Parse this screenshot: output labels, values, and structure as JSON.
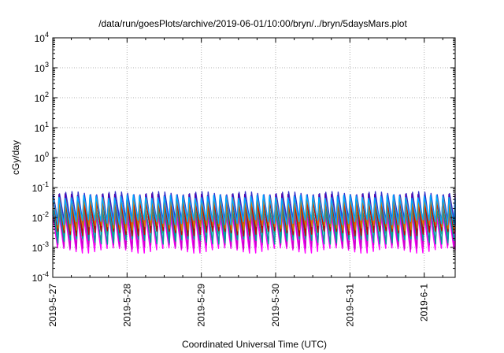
{
  "chart_data": {
    "type": "line",
    "title": "/data/run/goesPlots/archive/2019-06-01/10:00/bryn/../bryn/5daysMars.plot",
    "xlabel": "Coordinated Universal Time (UTC)",
    "ylabel": "cGy/day",
    "yscale": "log",
    "ylim": [
      0.0001,
      10000
    ],
    "xlim": [
      "2019-05-27",
      "2019-06-01T10:00"
    ],
    "grid": true,
    "xticks": [
      "2019-5-27",
      "2019-5-28",
      "2019-5-29",
      "2019-5-30",
      "2019-5-31",
      "2019-6-1"
    ],
    "yticks": [
      {
        "base": "10",
        "exp": "-4"
      },
      {
        "base": "10",
        "exp": "-3"
      },
      {
        "base": "10",
        "exp": "-2"
      },
      {
        "base": "10",
        "exp": "-1"
      },
      {
        "base": "10",
        "exp": "0"
      },
      {
        "base": "10",
        "exp": "1"
      },
      {
        "base": "10",
        "exp": "2"
      },
      {
        "base": "10",
        "exp": "3"
      },
      {
        "base": "10",
        "exp": "4"
      }
    ],
    "cycles_per_day": 12,
    "series": [
      {
        "color": "#ff00ff",
        "peak": 0.012,
        "trough": 0.0008
      },
      {
        "color": "#cc00cc",
        "peak": 0.016,
        "trough": 0.0011
      },
      {
        "color": "#00cccc",
        "peak": 0.03,
        "trough": 0.0022
      },
      {
        "color": "#22aa88",
        "peak": 0.045,
        "trough": 0.0035
      },
      {
        "color": "#009999",
        "peak": 0.02,
        "trough": 0.0016
      },
      {
        "color": "#3333cc",
        "peak": 0.065,
        "trough": 0.006
      },
      {
        "color": "#5500aa",
        "peak": 0.055,
        "trough": 0.005
      },
      {
        "color": "#cc0000",
        "peak": 0.035,
        "trough": 0.003
      },
      {
        "color": "#dd7700",
        "peak": 0.04,
        "trough": 0.0045
      },
      {
        "color": "#00aaff",
        "peak": 0.05,
        "trough": 0.007
      }
    ]
  }
}
